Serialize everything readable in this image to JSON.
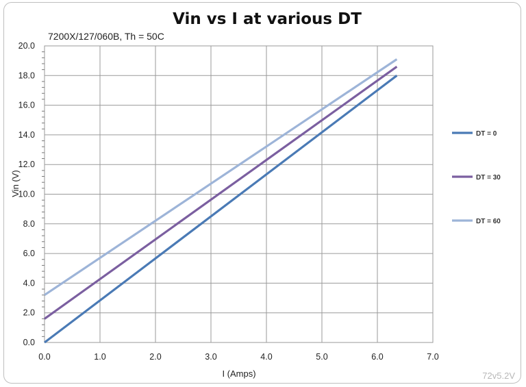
{
  "chart_data": {
    "type": "line",
    "title": "Vin vs I at various DT",
    "subtitle": "7200X/127/060B, Th = 50C",
    "xlabel": "I (Amps)",
    "ylabel": "Vin (V)",
    "xlim": [
      0,
      7
    ],
    "ylim": [
      0,
      20
    ],
    "xticks": [
      "0.0",
      "1.0",
      "2.0",
      "3.0",
      "4.0",
      "5.0",
      "6.0",
      "7.0"
    ],
    "yticks": [
      "0.0",
      "2.0",
      "4.0",
      "6.0",
      "8.0",
      "10.0",
      "12.0",
      "14.0",
      "16.0",
      "18.0",
      "20.0"
    ],
    "grid": true,
    "legend_position": "right",
    "series": [
      {
        "name": "DT = 0",
        "color": "#4a7ab5",
        "x": [
          0,
          6.35
        ],
        "y": [
          0.0,
          18.0
        ]
      },
      {
        "name": "DT = 30",
        "color": "#7b5fa0",
        "x": [
          0,
          6.35
        ],
        "y": [
          1.6,
          18.6
        ]
      },
      {
        "name": "DT = 60",
        "color": "#9db4d8",
        "x": [
          0,
          6.35
        ],
        "y": [
          3.2,
          19.1
        ]
      }
    ]
  },
  "footer": {
    "version": "72v5.2V"
  }
}
